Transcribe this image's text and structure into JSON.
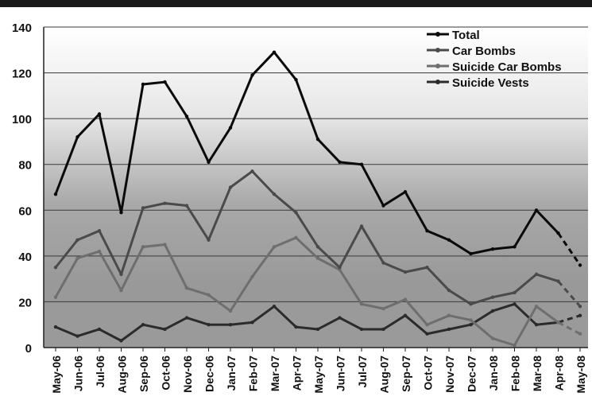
{
  "chart_data": {
    "type": "line",
    "title": "",
    "xlabel": "",
    "ylabel": "",
    "ylim": [
      0,
      140
    ],
    "yticks": [
      0,
      20,
      40,
      60,
      80,
      100,
      120,
      140
    ],
    "grid": true,
    "legend_position": "top-right",
    "categories": [
      "May-06",
      "Jun-06",
      "Jul-06",
      "Aug-06",
      "Sep-06",
      "Oct-06",
      "Nov-06",
      "Dec-06",
      "Jan-07",
      "Feb-07",
      "Mar-07",
      "Apr-07",
      "May-07",
      "Jun-07",
      "Jul-07",
      "Aug-07",
      "Sep-07",
      "Oct-07",
      "Nov-07",
      "Dec-07",
      "Jan-08",
      "Feb-08",
      "Mar-08",
      "Apr-08",
      "May-08"
    ],
    "projected_from_index": 23,
    "series": [
      {
        "name": "Total",
        "color": "#0a0a0a",
        "values": [
          67,
          92,
          102,
          59,
          115,
          116,
          101,
          81,
          96,
          119,
          129,
          117,
          91,
          81,
          80,
          62,
          68,
          51,
          47,
          41,
          43,
          44,
          60,
          50,
          36
        ]
      },
      {
        "name": "Car Bombs",
        "color": "#4a4a4a",
        "values": [
          35,
          47,
          51,
          32,
          61,
          63,
          62,
          47,
          70,
          77,
          67,
          59,
          44,
          35,
          53,
          37,
          33,
          35,
          25,
          19,
          22,
          24,
          32,
          29,
          18
        ]
      },
      {
        "name": "Suicide Car Bombs",
        "color": "#6e6e6e",
        "values": [
          22,
          39,
          42,
          25,
          44,
          45,
          26,
          23,
          16,
          31,
          44,
          48,
          39,
          34,
          19,
          17,
          21,
          10,
          14,
          12,
          4,
          1,
          18,
          11,
          6
        ]
      },
      {
        "name": "Suicide Vests",
        "color": "#2b2b2b",
        "values": [
          9,
          5,
          8,
          3,
          10,
          8,
          13,
          10,
          10,
          11,
          18,
          9,
          8,
          13,
          8,
          8,
          14,
          6,
          8,
          10,
          16,
          19,
          10,
          11,
          14
        ]
      }
    ]
  }
}
